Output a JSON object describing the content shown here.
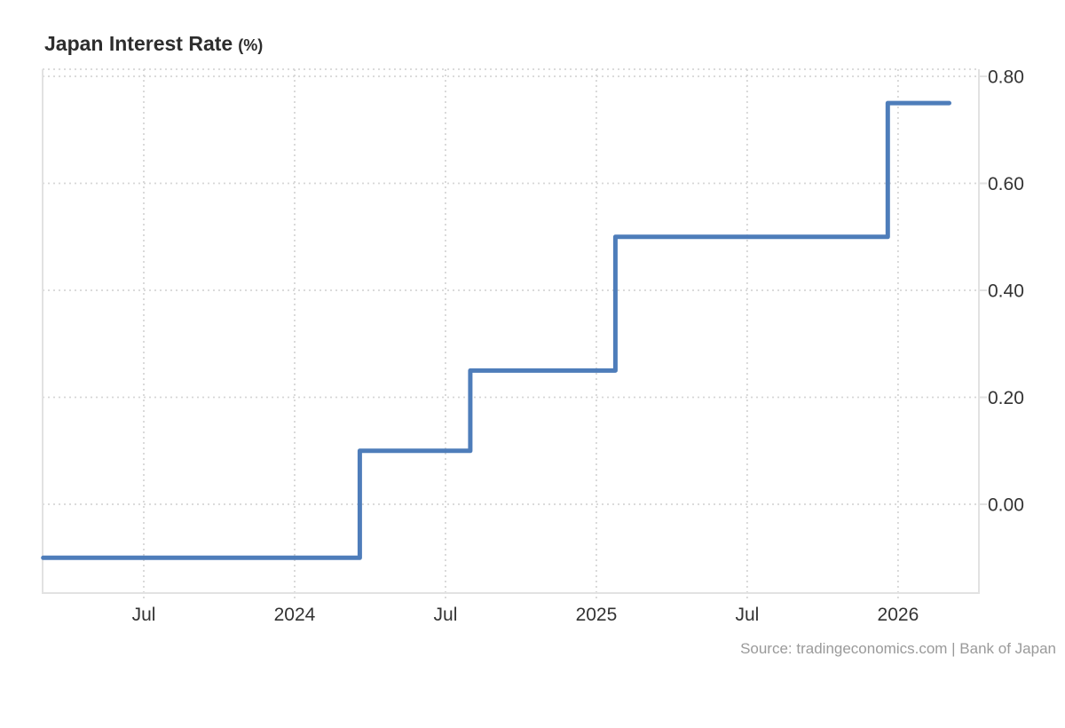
{
  "title": {
    "main": "Japan Interest Rate",
    "unit": "(%)"
  },
  "source": {
    "text": "Source: tradingeconomics.com | Bank of Japan"
  },
  "colors": {
    "line": "#4e7dba",
    "grid": "#d6d6d6",
    "axis_border": "#e2e2e2",
    "axis_text": "#333333",
    "title_text": "#2d2d2d",
    "source_text": "#9a9a9a"
  },
  "chart_data": {
    "type": "line",
    "line_style": "step-after",
    "title": "Japan Interest Rate (%)",
    "xlabel": "",
    "ylabel": "",
    "grid": true,
    "legend": false,
    "ylim": [
      -0.17,
      0.81
    ],
    "x_range": [
      "2023-03-01",
      "2026-04-15"
    ],
    "y_ticks": [
      {
        "value": 0.8,
        "label": "0.80"
      },
      {
        "value": 0.6,
        "label": "0.60"
      },
      {
        "value": 0.4,
        "label": "0.40"
      },
      {
        "value": 0.2,
        "label": "0.20"
      },
      {
        "value": 0.0,
        "label": "0.00"
      }
    ],
    "x_ticks": [
      {
        "month": "2023-07",
        "label": "Jul"
      },
      {
        "month": "2024-01",
        "label": "2024"
      },
      {
        "month": "2024-07",
        "label": "Jul"
      },
      {
        "month": "2025-01",
        "label": "2025"
      },
      {
        "month": "2025-07",
        "label": "Jul"
      },
      {
        "month": "2026-01",
        "label": "2026"
      }
    ],
    "series": [
      {
        "name": "Japan Interest Rate",
        "unit": "%",
        "color": "#4e7dba",
        "steps": [
          {
            "start": "2023-03-01",
            "value": -0.1
          },
          {
            "start": "2024-03-19",
            "value": 0.1
          },
          {
            "start": "2024-07-31",
            "value": 0.25
          },
          {
            "start": "2025-01-24",
            "value": 0.5
          },
          {
            "start": "2025-12-19",
            "value": 0.75
          }
        ],
        "end": "2026-03-02"
      }
    ]
  }
}
